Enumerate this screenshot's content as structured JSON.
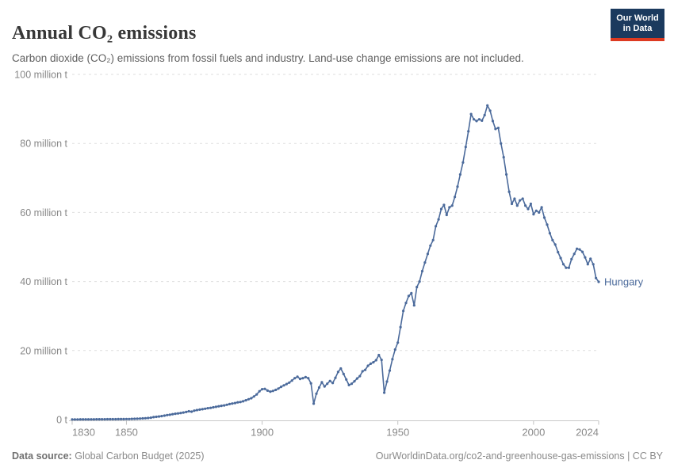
{
  "header": {
    "title": "Annual CO₂ emissions",
    "subtitle": "Carbon dioxide (CO₂) emissions from fossil fuels and industry. Land-use change emissions are not included.",
    "logo": {
      "line1": "Our World",
      "line2": "in Data"
    }
  },
  "colors": {
    "brand_navy": "#1b3a5e",
    "brand_red": "#dd3a21",
    "series_blue": "#4b6a9b",
    "gridline": "#dedede",
    "axis": "#c9c9c9",
    "tick_label": "#878787"
  },
  "chart_data": {
    "type": "line",
    "title": "Annual CO₂ emissions",
    "unit": "million t",
    "xlim": [
      1830,
      2024
    ],
    "ylim": [
      0,
      100
    ],
    "grid": "horizontal-dashed",
    "legend_position": "end-of-line label",
    "x_ticks": [
      1830,
      1850,
      1900,
      1950,
      2000,
      2024
    ],
    "y_ticks": [
      {
        "v": 0,
        "label": "0 t"
      },
      {
        "v": 20,
        "label": "20 million t"
      },
      {
        "v": 40,
        "label": "40 million t"
      },
      {
        "v": 60,
        "label": "60 million t"
      },
      {
        "v": 80,
        "label": "80 million t"
      },
      {
        "v": 100,
        "label": "100 million t"
      }
    ],
    "series": [
      {
        "name": "Hungary",
        "color": "#4b6a9b",
        "start_year": 1830,
        "end_year": 2024,
        "values": [
          0.05,
          0.05,
          0.05,
          0.06,
          0.06,
          0.07,
          0.07,
          0.08,
          0.08,
          0.09,
          0.09,
          0.1,
          0.1,
          0.11,
          0.11,
          0.12,
          0.12,
          0.13,
          0.13,
          0.14,
          0.15,
          0.17,
          0.2,
          0.23,
          0.26,
          0.3,
          0.35,
          0.4,
          0.45,
          0.55,
          0.7,
          0.8,
          0.9,
          1.0,
          1.15,
          1.3,
          1.4,
          1.55,
          1.7,
          1.8,
          1.9,
          2.05,
          2.2,
          2.4,
          2.3,
          2.6,
          2.75,
          2.9,
          3.0,
          3.15,
          3.3,
          3.4,
          3.55,
          3.7,
          3.85,
          4.0,
          4.1,
          4.3,
          4.5,
          4.65,
          4.8,
          5.0,
          5.1,
          5.3,
          5.6,
          5.9,
          6.2,
          6.7,
          7.3,
          8.2,
          8.8,
          8.9,
          8.4,
          8.1,
          8.3,
          8.6,
          9.0,
          9.5,
          9.9,
          10.3,
          10.7,
          11.3,
          12.0,
          12.4,
          11.8,
          12.0,
          12.3,
          12.0,
          10.5,
          4.6,
          7.5,
          9.3,
          10.8,
          9.6,
          10.4,
          11.2,
          10.6,
          12.1,
          13.8,
          14.8,
          13.2,
          11.6,
          10.0,
          10.4,
          11.1,
          11.9,
          12.6,
          14.0,
          14.4,
          15.6,
          16.2,
          16.6,
          17.2,
          18.7,
          17.3,
          7.8,
          11.0,
          14.2,
          17.5,
          20.3,
          22.3,
          26.8,
          31.5,
          33.8,
          35.8,
          36.6,
          33.1,
          38.4,
          40.0,
          43.0,
          45.5,
          48.0,
          50.4,
          52.0,
          56.0,
          58.0,
          61.0,
          62.2,
          59.3,
          61.5,
          62.0,
          64.5,
          67.5,
          71.0,
          74.5,
          79.0,
          83.5,
          88.5,
          87.0,
          86.5,
          87.0,
          86.6,
          88.2,
          91.0,
          89.5,
          86.5,
          84.2,
          84.5,
          80.0,
          76.0,
          71.0,
          66.0,
          62.5,
          64.0,
          62.0,
          63.5,
          64.0,
          62.0,
          61.0,
          62.5,
          59.5,
          60.5,
          60.0,
          61.5,
          58.5,
          56.5,
          54.0,
          52.0,
          50.7,
          48.5,
          46.8,
          45.0,
          44.0,
          44.0,
          46.5,
          48.0,
          49.5,
          49.3,
          48.6,
          47.0,
          45.0,
          46.6,
          45.0,
          41.0,
          39.9
        ]
      }
    ]
  },
  "footer": {
    "source_label": "Data source:",
    "source_value": "Global Carbon Budget (2025)",
    "link": "OurWorldinData.org/co2-and-greenhouse-gas-emissions | CC BY"
  }
}
